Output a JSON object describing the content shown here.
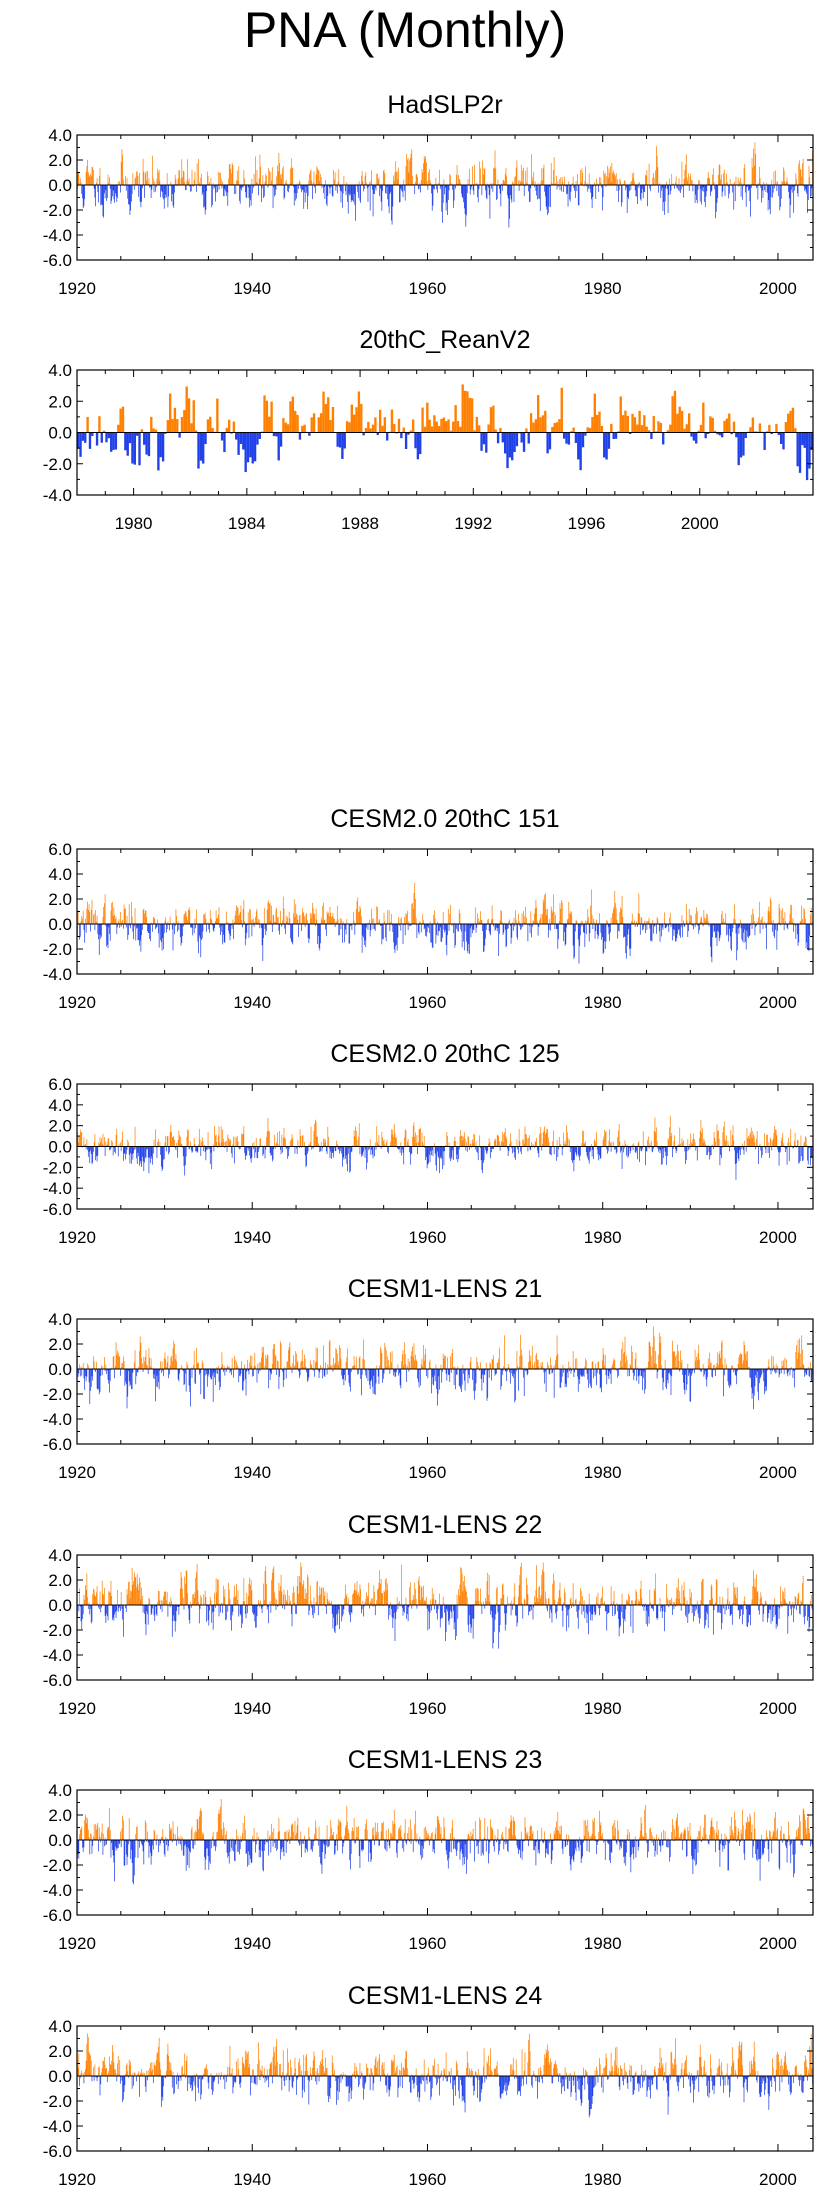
{
  "page": {
    "title": "PNA (Monthly)"
  },
  "colors": {
    "positive": "#ff8000",
    "negative": "#2040e8",
    "frame": "#000000"
  },
  "chart_data": [
    {
      "type": "bar",
      "title": "HadSLP2r",
      "x_start": 1920.0,
      "x_end": 2004.0,
      "ylim": [
        -6,
        4
      ],
      "yticks": [
        "4.0",
        "2.0",
        "0.0",
        "-2.0",
        "-4.0",
        "-6.0"
      ],
      "xticks": [
        "1920",
        "1940",
        "1960",
        "1980",
        "2000"
      ],
      "xtick_values": [
        1920,
        1940,
        1960,
        1980,
        2000
      ],
      "series_description": "monthly PNA index, orange > 0, blue < 0",
      "amplitude": 1.1,
      "seed": 11
    },
    {
      "type": "bar",
      "title": "20thC_ReanV2",
      "x_start": 1978.0,
      "x_end": 2004.0,
      "ylim": [
        -4,
        4
      ],
      "yticks": [
        "4.0",
        "2.0",
        "0.0",
        "-2.0",
        "-4.0"
      ],
      "xticks": [
        "1980",
        "1984",
        "1988",
        "1992",
        "1996",
        "2000"
      ],
      "xtick_values": [
        1980,
        1984,
        1988,
        1992,
        1996,
        2000
      ],
      "series_description": "monthly PNA index, orange > 0, blue < 0",
      "amplitude": 1.1,
      "seed": 23
    },
    {
      "type": "bar",
      "title": "CESM2.0 20thC 151",
      "x_start": 1920.0,
      "x_end": 2004.0,
      "ylim": [
        -4,
        6
      ],
      "yticks": [
        "6.0",
        "4.0",
        "2.0",
        "0.0",
        "-2.0",
        "-4.0"
      ],
      "xticks": [
        "1920",
        "1940",
        "1960",
        "1980",
        "2000"
      ],
      "xtick_values": [
        1920,
        1940,
        1960,
        1980,
        2000
      ],
      "series_description": "monthly PNA index, orange > 0, blue < 0",
      "amplitude": 1.0,
      "seed": 37
    },
    {
      "type": "bar",
      "title": "CESM2.0 20thC 125",
      "x_start": 1920.0,
      "x_end": 2004.0,
      "ylim": [
        -6,
        6
      ],
      "yticks": [
        "6.0",
        "4.0",
        "2.0",
        "0.0",
        "-2.0",
        "-4.0",
        "-6.0"
      ],
      "xticks": [
        "1920",
        "1940",
        "1960",
        "1980",
        "2000"
      ],
      "xtick_values": [
        1920,
        1940,
        1960,
        1980,
        2000
      ],
      "series_description": "monthly PNA index, orange > 0, blue < 0",
      "amplitude": 1.0,
      "seed": 41
    },
    {
      "type": "bar",
      "title": "CESM1-LENS 21",
      "x_start": 1920.0,
      "x_end": 2004.0,
      "ylim": [
        -6,
        4
      ],
      "yticks": [
        "4.0",
        "2.0",
        "0.0",
        "-2.0",
        "-4.0",
        "-6.0"
      ],
      "xticks": [
        "1920",
        "1940",
        "1960",
        "1980",
        "2000"
      ],
      "xtick_values": [
        1920,
        1940,
        1960,
        1980,
        2000
      ],
      "series_description": "monthly PNA index, orange > 0, blue < 0",
      "amplitude": 1.1,
      "seed": 53
    },
    {
      "type": "bar",
      "title": "CESM1-LENS 22",
      "x_start": 1920.0,
      "x_end": 2004.0,
      "ylim": [
        -6,
        4
      ],
      "yticks": [
        "4.0",
        "2.0",
        "0.0",
        "-2.0",
        "-4.0",
        "-6.0"
      ],
      "xticks": [
        "1920",
        "1940",
        "1960",
        "1980",
        "2000"
      ],
      "xtick_values": [
        1920,
        1940,
        1960,
        1980,
        2000
      ],
      "series_description": "monthly PNA index, orange > 0, blue < 0",
      "amplitude": 1.1,
      "seed": 67
    },
    {
      "type": "bar",
      "title": "CESM1-LENS 23",
      "x_start": 1920.0,
      "x_end": 2004.0,
      "ylim": [
        -6,
        4
      ],
      "yticks": [
        "4.0",
        "2.0",
        "0.0",
        "-2.0",
        "-4.0",
        "-6.0"
      ],
      "xticks": [
        "1920",
        "1940",
        "1960",
        "1980",
        "2000"
      ],
      "xtick_values": [
        1920,
        1940,
        1960,
        1980,
        2000
      ],
      "series_description": "monthly PNA index, orange > 0, blue < 0",
      "amplitude": 1.1,
      "seed": 79
    },
    {
      "type": "bar",
      "title": "CESM1-LENS 24",
      "x_start": 1920.0,
      "x_end": 2004.0,
      "ylim": [
        -6,
        4
      ],
      "yticks": [
        "4.0",
        "2.0",
        "0.0",
        "-2.0",
        "-4.0",
        "-6.0"
      ],
      "xticks": [
        "1920",
        "1940",
        "1960",
        "1980",
        "2000"
      ],
      "xtick_values": [
        1920,
        1940,
        1960,
        1980,
        2000
      ],
      "series_description": "monthly PNA index, orange > 0, blue < 0",
      "amplitude": 1.1,
      "seed": 97
    }
  ]
}
